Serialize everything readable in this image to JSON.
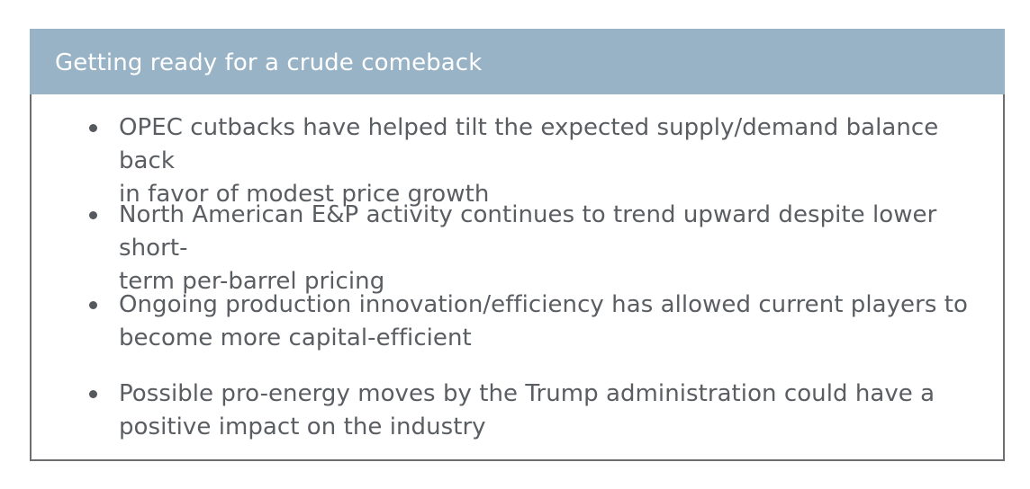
{
  "callout": {
    "title": "Getting ready for a crude comeback",
    "header_color": "#98b3c6",
    "border_color": "#6d6e71",
    "text_color": "#5a5d61",
    "bullets": [
      {
        "line1": "OPEC cutbacks have helped tilt the expected supply/demand balance back",
        "line2": "in favor of modest price growth"
      },
      {
        "line1": "North American E&P activity continues to trend upward despite lower short-",
        "line2": "term per-barrel pricing"
      },
      {
        "line1": "Ongoing production innovation/efficiency has allowed current players to",
        "line2": "become more capital-efficient"
      },
      {
        "line1": "Possible pro-energy moves by the Trump administration could have a",
        "line2": "positive impact on the industry"
      }
    ]
  }
}
